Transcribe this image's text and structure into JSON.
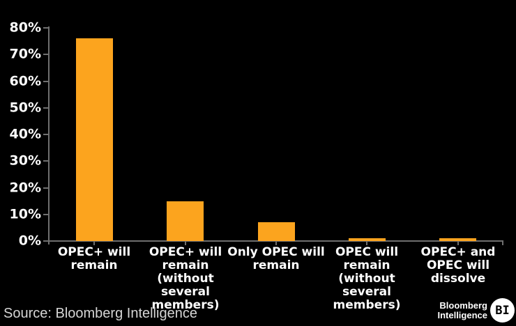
{
  "chart_data": {
    "type": "bar",
    "title": "",
    "xlabel": "",
    "ylabel": "",
    "categories": [
      "OPEC+ will\nremain",
      "OPEC+ will\nremain (without\nseveral\nmembers)",
      "Only OPEC will\nremain",
      "OPEC will\nremain (without\nseveral\nmembers)",
      "OPEC+ and\nOPEC will\ndissolve"
    ],
    "values": [
      76,
      15,
      7,
      1,
      1
    ],
    "value_unit": "%",
    "ylim": [
      0,
      80
    ],
    "y_tick_step": 10,
    "y_tick_labels": [
      "0%",
      "10%",
      "20%",
      "30%",
      "40%",
      "50%",
      "60%",
      "70%",
      "80%"
    ],
    "grid": false,
    "legend": "none",
    "bar_color": "#FCA41E",
    "axis_color": "#6F6F6F",
    "label_color": "#FFFFFF",
    "background_color": "#000000"
  },
  "footer": {
    "source": "Source: Bloomberg Intelligence",
    "logo_line1": "Bloomberg",
    "logo_line2": "Intelligence",
    "logo_badge": "BI"
  }
}
